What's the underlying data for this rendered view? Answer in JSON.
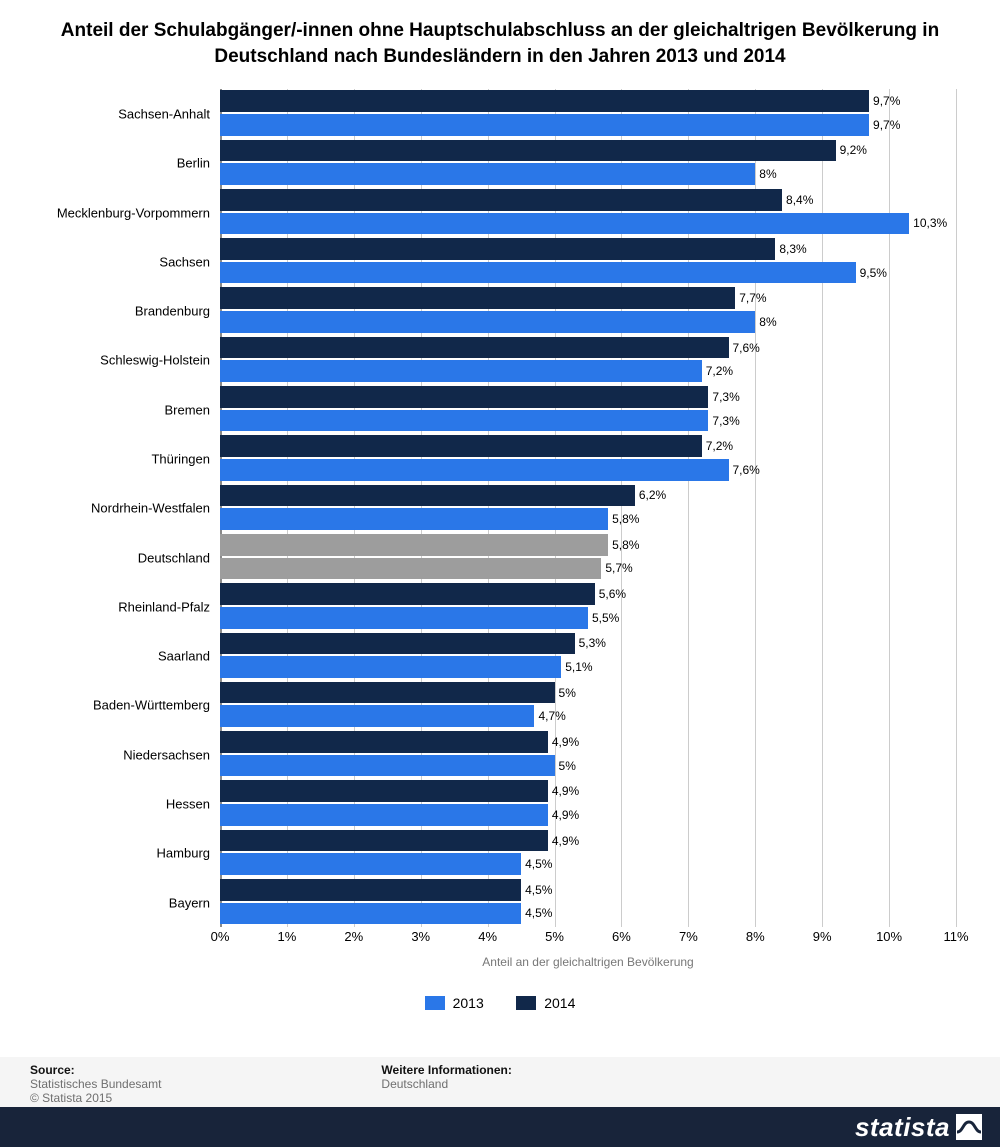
{
  "title": "Anteil der Schulabgänger/-innen ohne Hauptschulabschluss an der gleichaltrigen Bevölkerung in Deutschland nach Bundesländern in den Jahren 2013 und 2014",
  "title_fontsize": 19,
  "chart": {
    "type": "grouped-horizontal-bar",
    "xlim": [
      0,
      11
    ],
    "xtick_step": 1,
    "grid_color": "#cccccc",
    "background": "#ffffff",
    "axis_fontsize": 13,
    "label_fontsize": 13,
    "value_fontsize": 12,
    "xlabel": "Anteil an der gleichaltrigen Bevölkerung",
    "xlabel_fontsize": 12,
    "series": [
      {
        "name": "2014",
        "color": "#11284a"
      },
      {
        "name": "2013",
        "color": "#2a77e8"
      }
    ],
    "deutschland_color": "#9d9d9d",
    "categories": [
      {
        "label": "Sachsen-Anhalt",
        "v2014": 9.7,
        "v2013": 9.7,
        "t2014": "9,7%",
        "t2013": "9,7%"
      },
      {
        "label": "Berlin",
        "v2014": 9.2,
        "v2013": 8.0,
        "t2014": "9,2%",
        "t2013": "8%"
      },
      {
        "label": "Mecklenburg-Vorpommern",
        "v2014": 8.4,
        "v2013": 10.3,
        "t2014": "8,4%",
        "t2013": "10,3%"
      },
      {
        "label": "Sachsen",
        "v2014": 8.3,
        "v2013": 9.5,
        "t2014": "8,3%",
        "t2013": "9,5%"
      },
      {
        "label": "Brandenburg",
        "v2014": 7.7,
        "v2013": 8.0,
        "t2014": "7,7%",
        "t2013": "8%"
      },
      {
        "label": "Schleswig-Holstein",
        "v2014": 7.6,
        "v2013": 7.2,
        "t2014": "7,6%",
        "t2013": "7,2%"
      },
      {
        "label": "Bremen",
        "v2014": 7.3,
        "v2013": 7.3,
        "t2014": "7,3%",
        "t2013": "7,3%"
      },
      {
        "label": "Thüringen",
        "v2014": 7.2,
        "v2013": 7.6,
        "t2014": "7,2%",
        "t2013": "7,6%"
      },
      {
        "label": "Nordrhein-Westfalen",
        "v2014": 6.2,
        "v2013": 5.8,
        "t2014": "6,2%",
        "t2013": "5,8%"
      },
      {
        "label": "Deutschland",
        "v2014": 5.8,
        "v2013": 5.7,
        "t2014": "5,8%",
        "t2013": "5,7%",
        "grey": true
      },
      {
        "label": "Rheinland-Pfalz",
        "v2014": 5.6,
        "v2013": 5.5,
        "t2014": "5,6%",
        "t2013": "5,5%"
      },
      {
        "label": "Saarland",
        "v2014": 5.3,
        "v2013": 5.1,
        "t2014": "5,3%",
        "t2013": "5,1%"
      },
      {
        "label": "Baden-Württemberg",
        "v2014": 5.0,
        "v2013": 4.7,
        "t2014": "5%",
        "t2013": "4,7%"
      },
      {
        "label": "Niedersachsen",
        "v2014": 4.9,
        "v2013": 5.0,
        "t2014": "4,9%",
        "t2013": "5%"
      },
      {
        "label": "Hessen",
        "v2014": 4.9,
        "v2013": 4.9,
        "t2014": "4,9%",
        "t2013": "4,9%"
      },
      {
        "label": "Hamburg",
        "v2014": 4.9,
        "v2013": 4.5,
        "t2014": "4,9%",
        "t2013": "4,5%"
      },
      {
        "label": "Bayern",
        "v2014": 4.5,
        "v2013": 4.5,
        "t2014": "4,5%",
        "t2013": "4,5%"
      }
    ]
  },
  "legend": {
    "items": [
      {
        "label": "2013",
        "color": "#2a77e8"
      },
      {
        "label": "2014",
        "color": "#11284a"
      }
    ],
    "fontsize": 14
  },
  "footer": {
    "source_title": "Source:",
    "source_line1": "Statistisches Bundesamt",
    "source_line2": "© Statista 2015",
    "info_title": "Weitere Informationen:",
    "info_line1": "Deutschland",
    "brand": "statista",
    "footer_bg": "#f5f5f5",
    "brand_bg": "#18243a"
  }
}
